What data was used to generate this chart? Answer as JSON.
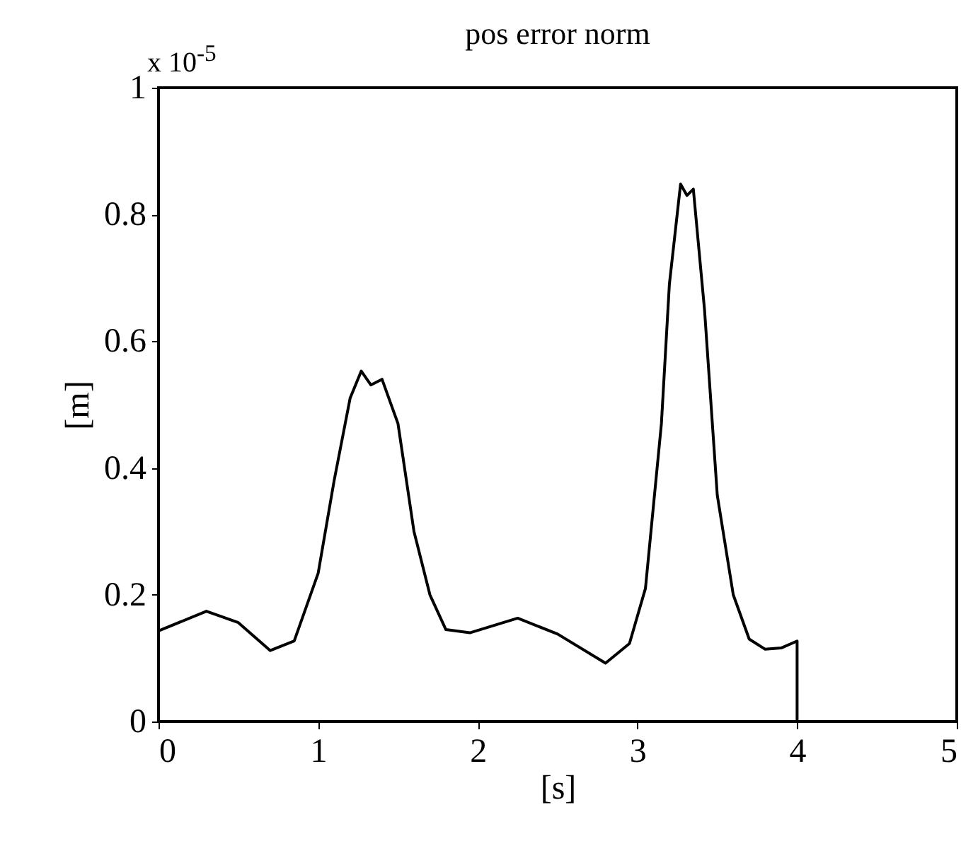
{
  "chart_data": {
    "type": "line",
    "title": "pos error norm",
    "xlabel": "[s]",
    "ylabel": "[m]",
    "annotations": [
      "x 10$^{-5}$"
    ],
    "x": [
      0,
      0.3,
      0.5,
      0.7,
      0.85,
      1.0,
      1.1,
      1.2,
      1.27,
      1.33,
      1.4,
      1.5,
      1.6,
      1.7,
      1.8,
      1.95,
      2.25,
      2.5,
      2.8,
      2.95,
      3.05,
      3.15,
      3.2,
      3.27,
      3.31,
      3.35,
      3.42,
      3.5,
      3.6,
      3.7,
      3.8,
      3.9,
      4.0,
      4.0
    ],
    "series": [
      {
        "color": "#000000",
        "values": [
          0.143,
          0.174,
          0.156,
          0.112,
          0.127,
          0.234,
          0.38,
          0.51,
          0.553,
          0.531,
          0.54,
          0.47,
          0.3,
          0.2,
          0.145,
          0.14,
          0.163,
          0.138,
          0.092,
          0.123,
          0.21,
          0.47,
          0.69,
          0.848,
          0.83,
          0.84,
          0.65,
          0.357,
          0.2,
          0.13,
          0.114,
          0.116,
          0.127,
          0
        ]
      }
    ],
    "xlim": [
      0,
      5
    ],
    "xticks": [
      0,
      1,
      2,
      3,
      4,
      5
    ],
    "ylim": [
      0,
      1
    ],
    "yticks": [
      0,
      0.2,
      0.4,
      0.6,
      0.8,
      1
    ],
    "grid": false,
    "line_style": "solid",
    "marker": "none"
  }
}
